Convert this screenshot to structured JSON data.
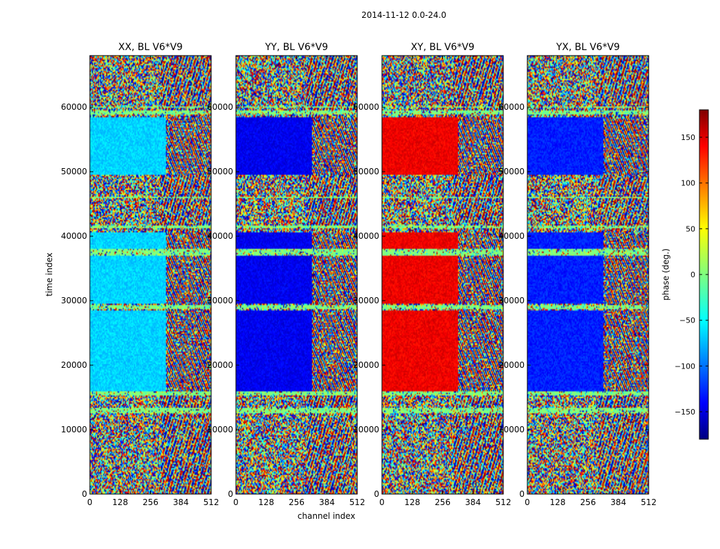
{
  "chart_data": {
    "type": "heatmap",
    "suptitle": "2014-11-12 0.0-24.0",
    "xlabel": "channel index",
    "ylabel": "time index",
    "x_range": [
      0,
      512
    ],
    "y_range": [
      0,
      68000
    ],
    "x_ticks": [
      0,
      128,
      256,
      384,
      512
    ],
    "x_tick_labels": [
      "0",
      "128",
      "256",
      "384",
      "512"
    ],
    "y_ticks": [
      0,
      10000,
      20000,
      30000,
      40000,
      50000,
      60000
    ],
    "y_tick_labels": [
      "0",
      "10000",
      "20000",
      "30000",
      "40000",
      "50000",
      "60000"
    ],
    "colorbar": {
      "label": "phase (deg.)",
      "range": [
        -180,
        180
      ],
      "ticks": [
        -150,
        -100,
        -50,
        0,
        50,
        100,
        150
      ],
      "tick_labels": [
        "−150",
        "−100",
        "−50",
        "0",
        "50",
        "100",
        "150"
      ],
      "colormap": "jet"
    },
    "panels": [
      {
        "title": "XX, BL V6*V9",
        "dominant_phase_deg": -60,
        "band_phase_deg": 0
      },
      {
        "title": "YY, BL V6*V9",
        "dominant_phase_deg": -140,
        "band_phase_deg": -110
      },
      {
        "title": "XY, BL V6*V9",
        "dominant_phase_deg": 140,
        "band_phase_deg": 120
      },
      {
        "title": "YX, BL V6*V9",
        "dominant_phase_deg": -125,
        "band_phase_deg": -95
      }
    ],
    "structure": {
      "coherent_channel_max": 320,
      "coherent_segments_time": [
        [
          16000,
          28500
        ],
        [
          29500,
          40500
        ],
        [
          49500,
          58500
        ]
      ],
      "noise_segments_time": [
        [
          0,
          12500
        ],
        [
          13000,
          15500
        ],
        [
          59000,
          68000
        ]
      ],
      "flagged_rows_time": [
        12800,
        15800,
        29000,
        37500,
        41500,
        46000,
        59000,
        60000
      ],
      "green_band_time": [
        [
          12500,
          13300
        ],
        [
          15300,
          15800
        ],
        [
          28600,
          29300
        ],
        [
          37000,
          38000
        ],
        [
          58800,
          59400
        ]
      ]
    }
  }
}
